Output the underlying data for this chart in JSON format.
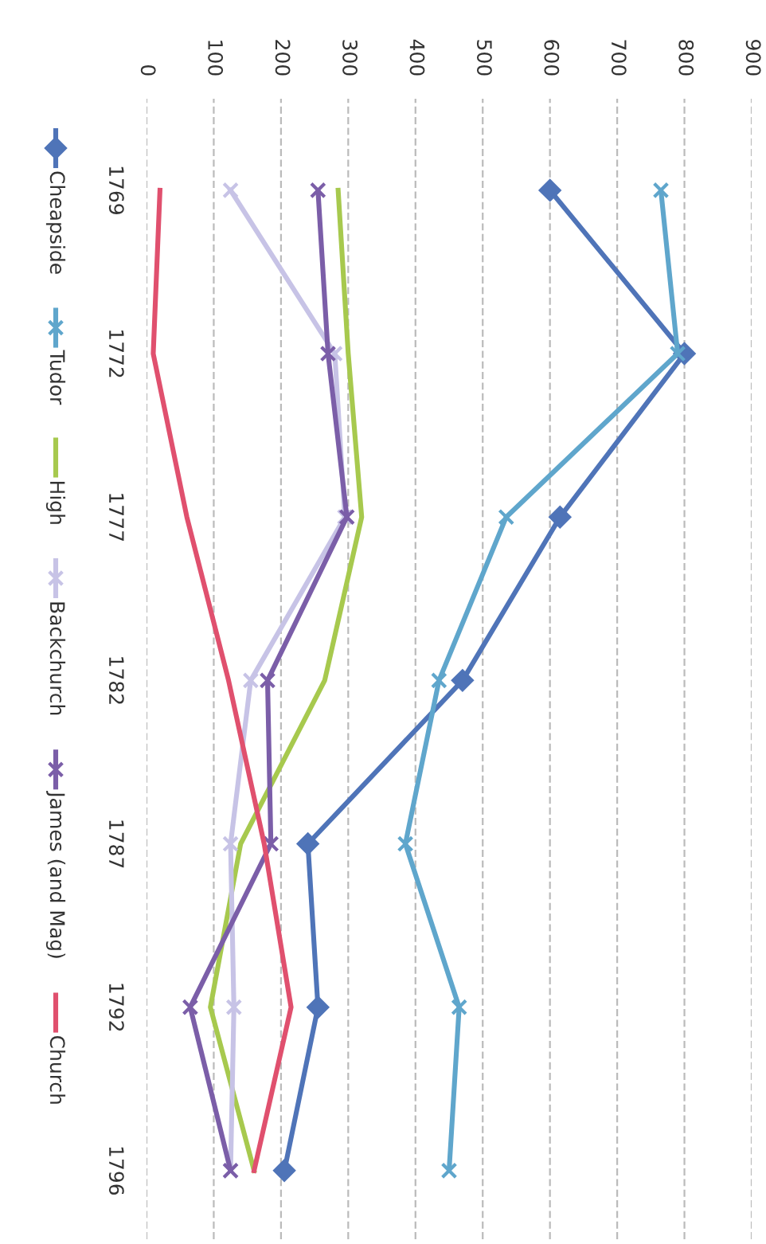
{
  "chart_data": {
    "type": "line",
    "categories": [
      "1769",
      "1772",
      "1777",
      "1782",
      "1787",
      "1792",
      "1796"
    ],
    "series": [
      {
        "name": "Cheapside",
        "color": "#4f74b8",
        "marker": "diamond",
        "values": [
          600,
          800,
          615,
          470,
          240,
          255,
          205
        ]
      },
      {
        "name": "Tudor",
        "color": "#5fa6cc",
        "marker": "cross",
        "values": [
          765,
          790,
          535,
          435,
          385,
          465,
          450
        ]
      },
      {
        "name": "High",
        "color": "#a7c94e",
        "marker": "none",
        "values": [
          285,
          300,
          320,
          265,
          140,
          95,
          160
        ]
      },
      {
        "name": "Backchurch",
        "color": "#c7c3e6",
        "marker": "cross",
        "values": [
          125,
          280,
          295,
          155,
          125,
          130,
          125
        ]
      },
      {
        "name": "James (and Mag)",
        "color": "#7b5ea8",
        "marker": "cross",
        "values": [
          255,
          270,
          298,
          180,
          185,
          65,
          125
        ]
      },
      {
        "name": "Church",
        "color": "#e0506e",
        "marker": "none",
        "values": [
          20,
          10,
          60,
          122,
          175,
          215,
          160
        ]
      }
    ],
    "orientation": "horizontal",
    "xlim": [
      0,
      900
    ],
    "xticks": [
      0,
      100,
      200,
      300,
      400,
      500,
      600,
      700,
      800,
      900
    ],
    "grid": "x",
    "legend": "left"
  }
}
